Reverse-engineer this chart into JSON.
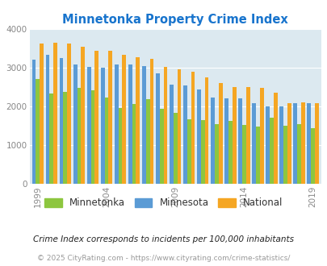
{
  "title": "Minnetonka Property Crime Index",
  "title_color": "#1874CD",
  "background_color": "#dce9f0",
  "figure_bg": "#ffffff",
  "years": [
    1999,
    2000,
    2001,
    2002,
    2003,
    2004,
    2005,
    2006,
    2007,
    2008,
    2009,
    2010,
    2011,
    2012,
    2013,
    2014,
    2015,
    2016,
    2017,
    2018,
    2019
  ],
  "minnetonka": [
    2720,
    2330,
    2380,
    2480,
    2410,
    2240,
    1950,
    2060,
    2180,
    1940,
    1830,
    1660,
    1650,
    1530,
    1620,
    1510,
    1470,
    1700,
    1490,
    1550,
    1440
  ],
  "minnesota": [
    3210,
    3330,
    3260,
    3090,
    3030,
    3000,
    3080,
    3080,
    3050,
    2860,
    2560,
    2550,
    2440,
    2230,
    2200,
    2200,
    2080,
    1990,
    2000,
    2090,
    2090
  ],
  "national": [
    3620,
    3650,
    3620,
    3540,
    3440,
    3450,
    3340,
    3280,
    3230,
    3020,
    2960,
    2890,
    2750,
    2610,
    2510,
    2500,
    2490,
    2360,
    2090,
    2110,
    2090
  ],
  "bar_width": 0.28,
  "ylim": [
    0,
    4000
  ],
  "yticks": [
    0,
    1000,
    2000,
    3000,
    4000
  ],
  "xtick_years": [
    1999,
    2004,
    2009,
    2014,
    2019
  ],
  "colors": {
    "minnetonka": "#8dc63f",
    "minnesota": "#5b9bd5",
    "national": "#f5a623"
  },
  "legend_labels": [
    "Minnetonka",
    "Minnesota",
    "National"
  ],
  "footnote1": "Crime Index corresponds to incidents per 100,000 inhabitants",
  "footnote2": "© 2025 CityRating.com - https://www.cityrating.com/crime-statistics/",
  "footnote1_color": "#222222",
  "footnote2_color": "#999999"
}
